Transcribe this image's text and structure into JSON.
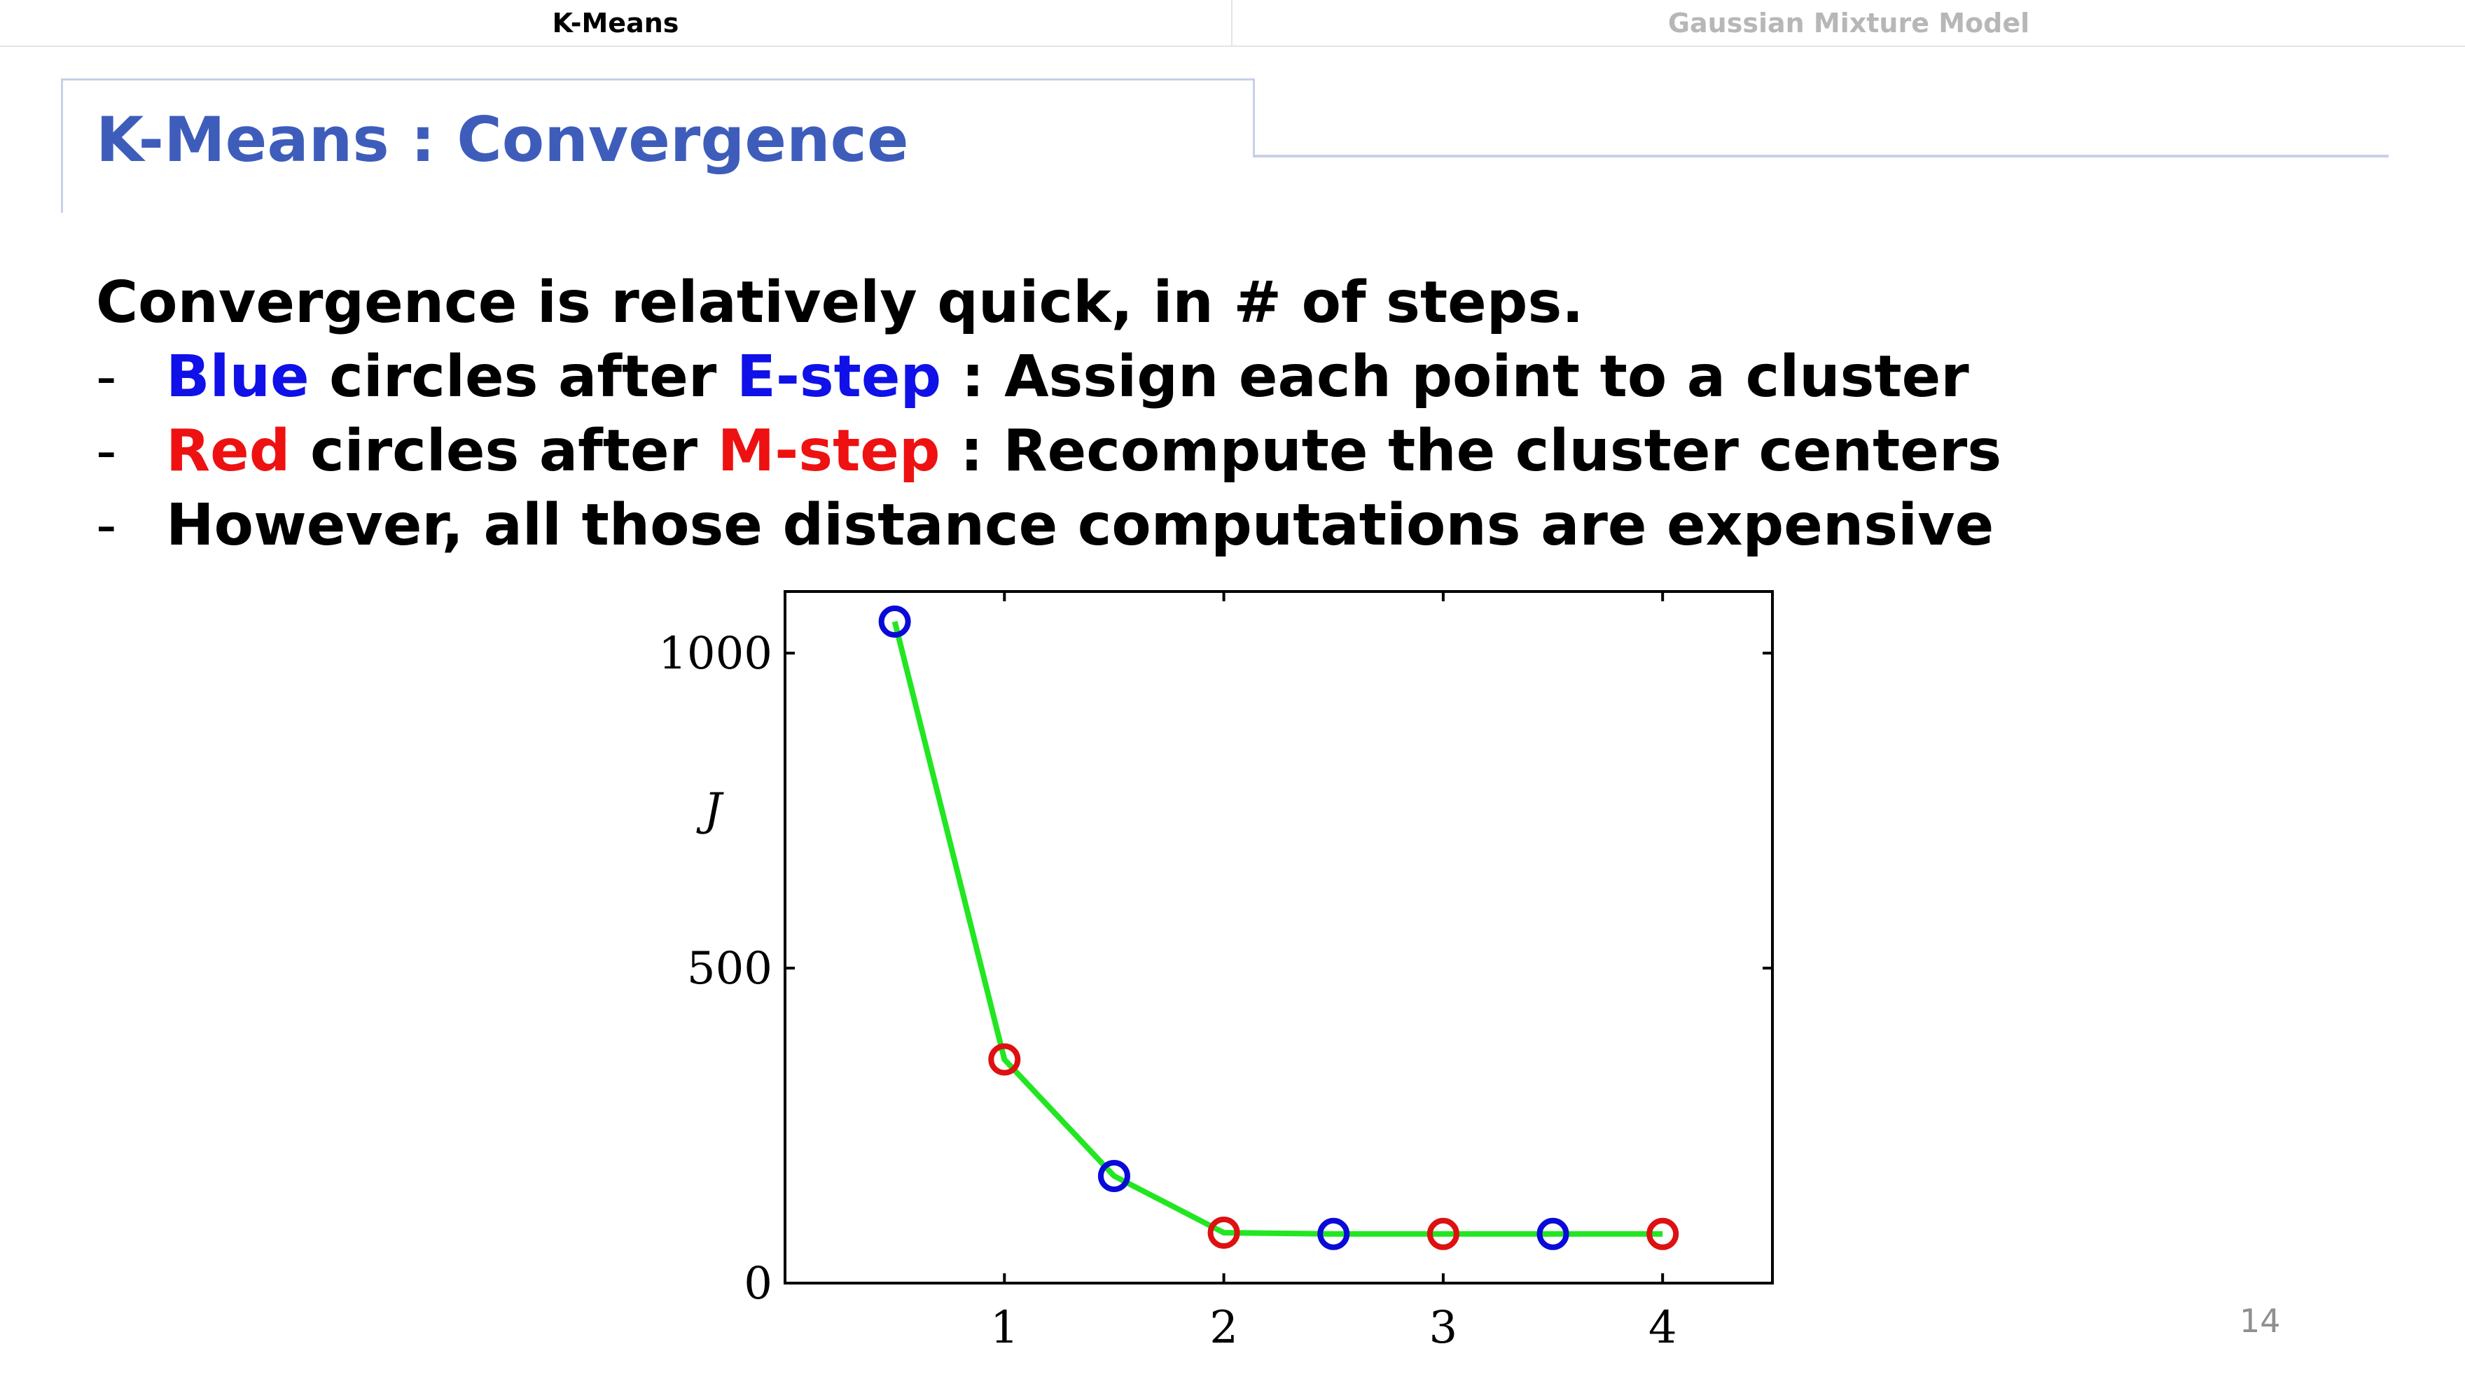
{
  "tabs": [
    {
      "label": "K-Means"
    },
    {
      "label": "Gaussian Mixture Model"
    }
  ],
  "slide_title": "K-Means : Convergence",
  "body": {
    "intro": "Convergence is relatively quick, in # of steps.",
    "bullets": [
      {
        "dash": "-",
        "parts": [
          {
            "text": "Blue",
            "color": "#1010e8"
          },
          {
            "text": " circles after "
          },
          {
            "text": "E-step",
            "color": "#1010e8"
          },
          {
            "text": " : Assign each point to a cluster"
          }
        ]
      },
      {
        "dash": "-",
        "parts": [
          {
            "text": "Red",
            "color": "#ee1111"
          },
          {
            "text": " circles after "
          },
          {
            "text": "M-step",
            "color": "#ee1111"
          },
          {
            "text": " : Recompute the cluster centers"
          }
        ]
      },
      {
        "dash": "-",
        "parts": [
          {
            "text": "However, all those distance computations are expensive"
          }
        ]
      }
    ]
  },
  "page_number": "14",
  "chart_data": {
    "type": "line",
    "ylabel": "J",
    "xlabel": "",
    "xlim": [
      0,
      4.5
    ],
    "ylim": [
      0,
      1100
    ],
    "x_ticks": [
      1,
      2,
      3,
      4
    ],
    "x_tick_labels": [
      "1",
      "2",
      "3",
      "4"
    ],
    "y_ticks": [
      0,
      500,
      1000
    ],
    "y_tick_labels": [
      "0",
      "500",
      "1000"
    ],
    "line_color": "#22e622",
    "series": [
      {
        "x": [
          0.5,
          1,
          1.5,
          2,
          2.5,
          3,
          3.5,
          4
        ],
        "values": [
          1050,
          355,
          170,
          80,
          78,
          78,
          78,
          78
        ],
        "marker_colors": [
          "#0a0ad8",
          "#dd1111",
          "#0a0ad8",
          "#dd1111",
          "#0a0ad8",
          "#dd1111",
          "#0a0ad8",
          "#dd1111"
        ]
      }
    ]
  }
}
